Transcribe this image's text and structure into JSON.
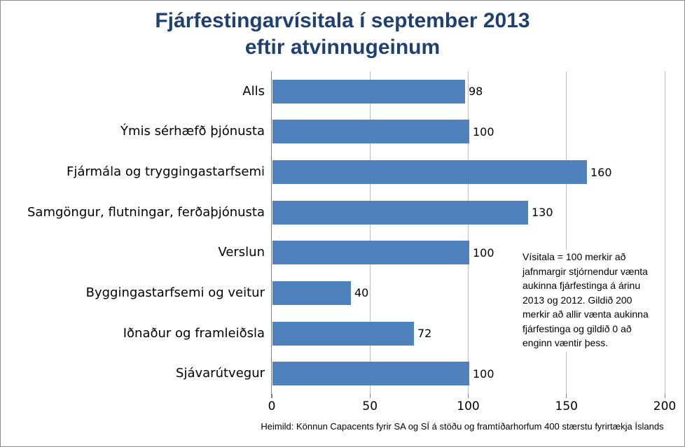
{
  "title": {
    "line1": "Fjárfestingarvísitala í september 2013",
    "line2": "eftir atvinnugeinum"
  },
  "chart_data": {
    "type": "bar",
    "orientation": "horizontal",
    "title": "Fjárfestingarvísitala í september 2013 eftir atvinnugeinum",
    "categories": [
      "Alls",
      "Ýmis sérhæfð þjónusta",
      "Fjármála og tryggingastarfsemi",
      "Samgöngur, flutningar, ferðaþjónusta",
      "Verslun",
      "Byggingastarfsemi og veitur",
      "Iðnaður og framleiðsla",
      "Sjávarútvegur"
    ],
    "values": [
      98,
      100,
      160,
      130,
      100,
      40,
      72,
      100
    ],
    "xlim": [
      0,
      200
    ],
    "xticks": [
      0,
      50,
      100,
      150,
      200
    ],
    "grid": true,
    "legend": false,
    "value_labels_shown": true,
    "xlabel": "",
    "ylabel": ""
  },
  "annotation": {
    "text": "Vísitala = 100 merkir að\njafnmargir stjórnendur vænta\naukinna fjárfestinga á árinu\n2013 og 2012. Gildið 200\nmerkir að allir vænta aukinna\nfjárfestinga og gildið 0 að\nenginn væntir þess."
  },
  "footer": {
    "text": "Heimild: Könnun Capacents fyrir SA og SÍ á stöðu og framtíðarhorfum 400 stærstu fyrirtækja Íslands"
  },
  "colors": {
    "bar": "#4F81BD",
    "title_text": "#1F4170",
    "gridline": "#BFBFBF",
    "axis_line": "#7F7F7F",
    "frame_border": "#8C8C8C",
    "label_text": "#000000"
  }
}
